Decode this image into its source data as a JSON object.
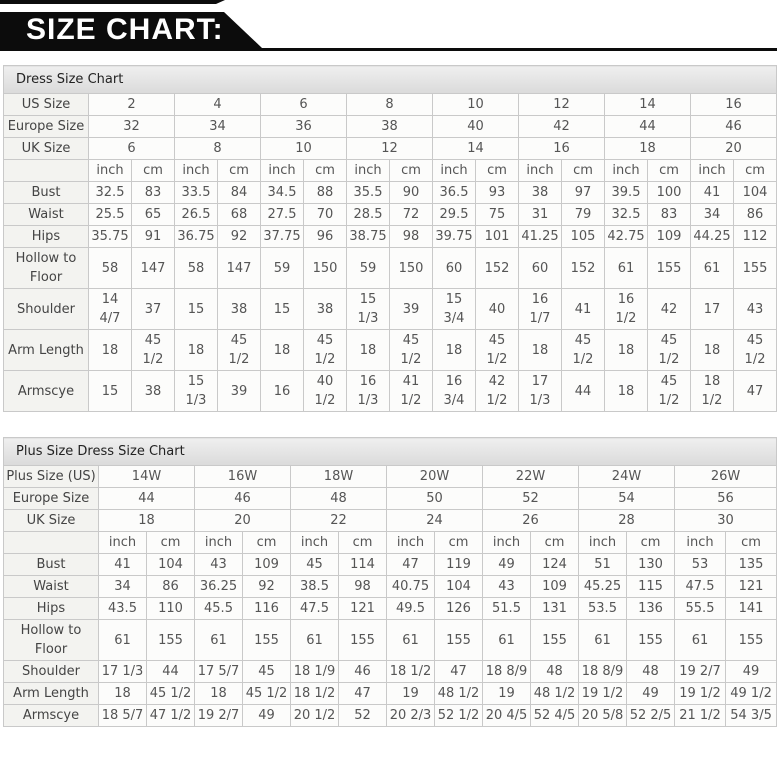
{
  "banner": {
    "title": "SIZE CHART:"
  },
  "colors": {
    "banner_bg": "#0c0c0c",
    "banner_text": "#ffffff",
    "table_border": "#c9c9c9",
    "title_row_bg": "#e5e5e5",
    "label_col_bg": "#f3f3f0",
    "cell_bg": "#fcfcfb",
    "text": "#555555"
  },
  "tables": [
    {
      "title": "Dress Size Chart",
      "size_rows": [
        {
          "label": "US Size",
          "values": [
            "2",
            "4",
            "6",
            "8",
            "10",
            "12",
            "14",
            "16"
          ]
        },
        {
          "label": "Europe Size",
          "values": [
            "32",
            "34",
            "36",
            "38",
            "40",
            "42",
            "44",
            "46"
          ]
        },
        {
          "label": "UK Size",
          "values": [
            "6",
            "8",
            "10",
            "12",
            "14",
            "16",
            "18",
            "20"
          ]
        }
      ],
      "unit_row": [
        "inch",
        "cm",
        "inch",
        "cm",
        "inch",
        "cm",
        "inch",
        "cm",
        "inch",
        "cm",
        "inch",
        "cm",
        "inch",
        "cm",
        "inch",
        "cm"
      ],
      "measure_rows": [
        {
          "label": "Bust",
          "values": [
            "32.5",
            "83",
            "33.5",
            "84",
            "34.5",
            "88",
            "35.5",
            "90",
            "36.5",
            "93",
            "38",
            "97",
            "39.5",
            "100",
            "41",
            "104"
          ]
        },
        {
          "label": "Waist",
          "values": [
            "25.5",
            "65",
            "26.5",
            "68",
            "27.5",
            "70",
            "28.5",
            "72",
            "29.5",
            "75",
            "31",
            "79",
            "32.5",
            "83",
            "34",
            "86"
          ]
        },
        {
          "label": "Hips",
          "values": [
            "35.75",
            "91",
            "36.75",
            "92",
            "37.75",
            "96",
            "38.75",
            "98",
            "39.75",
            "101",
            "41.25",
            "105",
            "42.75",
            "109",
            "44.25",
            "112"
          ]
        },
        {
          "label": "Hollow to Floor",
          "values": [
            "58",
            "147",
            "58",
            "147",
            "59",
            "150",
            "59",
            "150",
            "60",
            "152",
            "60",
            "152",
            "61",
            "155",
            "61",
            "155"
          ]
        },
        {
          "label": "Shoulder",
          "values": [
            "14 4/7",
            "37",
            "15",
            "38",
            "15",
            "38",
            "15 1/3",
            "39",
            "15 3/4",
            "40",
            "16 1/7",
            "41",
            "16 1/2",
            "42",
            "17",
            "43"
          ]
        },
        {
          "label": "Arm Length",
          "values": [
            "18",
            "45 1/2",
            "18",
            "45 1/2",
            "18",
            "45 1/2",
            "18",
            "45 1/2",
            "18",
            "45 1/2",
            "18",
            "45 1/2",
            "18",
            "45 1/2",
            "18",
            "45 1/2"
          ]
        },
        {
          "label": "Armscye",
          "values": [
            "15",
            "38",
            "15 1/3",
            "39",
            "16",
            "40 1/2",
            "16 1/3",
            "41 1/2",
            "16 3/4",
            "42 1/2",
            "17 1/3",
            "44",
            "18",
            "45 1/2",
            "18 1/2",
            "47"
          ]
        }
      ]
    },
    {
      "title": "Plus Size Dress Size Chart",
      "size_rows": [
        {
          "label": "Plus Size (US)",
          "values": [
            "14W",
            "16W",
            "18W",
            "20W",
            "22W",
            "24W",
            "26W"
          ]
        },
        {
          "label": "Europe Size",
          "values": [
            "44",
            "46",
            "48",
            "50",
            "52",
            "54",
            "56"
          ]
        },
        {
          "label": "UK Size",
          "values": [
            "18",
            "20",
            "22",
            "24",
            "26",
            "28",
            "30"
          ]
        }
      ],
      "unit_row": [
        "inch",
        "cm",
        "inch",
        "cm",
        "inch",
        "cm",
        "inch",
        "cm",
        "inch",
        "cm",
        "inch",
        "cm",
        "inch",
        "cm"
      ],
      "measure_rows": [
        {
          "label": "Bust",
          "values": [
            "41",
            "104",
            "43",
            "109",
            "45",
            "114",
            "47",
            "119",
            "49",
            "124",
            "51",
            "130",
            "53",
            "135"
          ]
        },
        {
          "label": "Waist",
          "values": [
            "34",
            "86",
            "36.25",
            "92",
            "38.5",
            "98",
            "40.75",
            "104",
            "43",
            "109",
            "45.25",
            "115",
            "47.5",
            "121"
          ]
        },
        {
          "label": "Hips",
          "values": [
            "43.5",
            "110",
            "45.5",
            "116",
            "47.5",
            "121",
            "49.5",
            "126",
            "51.5",
            "131",
            "53.5",
            "136",
            "55.5",
            "141"
          ]
        },
        {
          "label": "Hollow to Floor",
          "values": [
            "61",
            "155",
            "61",
            "155",
            "61",
            "155",
            "61",
            "155",
            "61",
            "155",
            "61",
            "155",
            "61",
            "155"
          ]
        },
        {
          "label": "Shoulder",
          "values": [
            "17 1/3",
            "44",
            "17 5/7",
            "45",
            "18 1/9",
            "46",
            "18 1/2",
            "47",
            "18 8/9",
            "48",
            "18 8/9",
            "48",
            "19 2/7",
            "49"
          ]
        },
        {
          "label": "Arm Length",
          "values": [
            "18",
            "45 1/2",
            "18",
            "45 1/2",
            "18 1/2",
            "47",
            "19",
            "48 1/2",
            "19",
            "48 1/2",
            "19 1/2",
            "49",
            "19 1/2",
            "49 1/2"
          ]
        },
        {
          "label": "Armscye",
          "values": [
            "18 5/7",
            "47 1/2",
            "19 2/7",
            "49",
            "20 1/2",
            "52",
            "20 2/3",
            "52 1/2",
            "20 4/5",
            "52 4/5",
            "20 5/8",
            "52 2/5",
            "21 1/2",
            "54 3/5"
          ]
        }
      ]
    }
  ]
}
